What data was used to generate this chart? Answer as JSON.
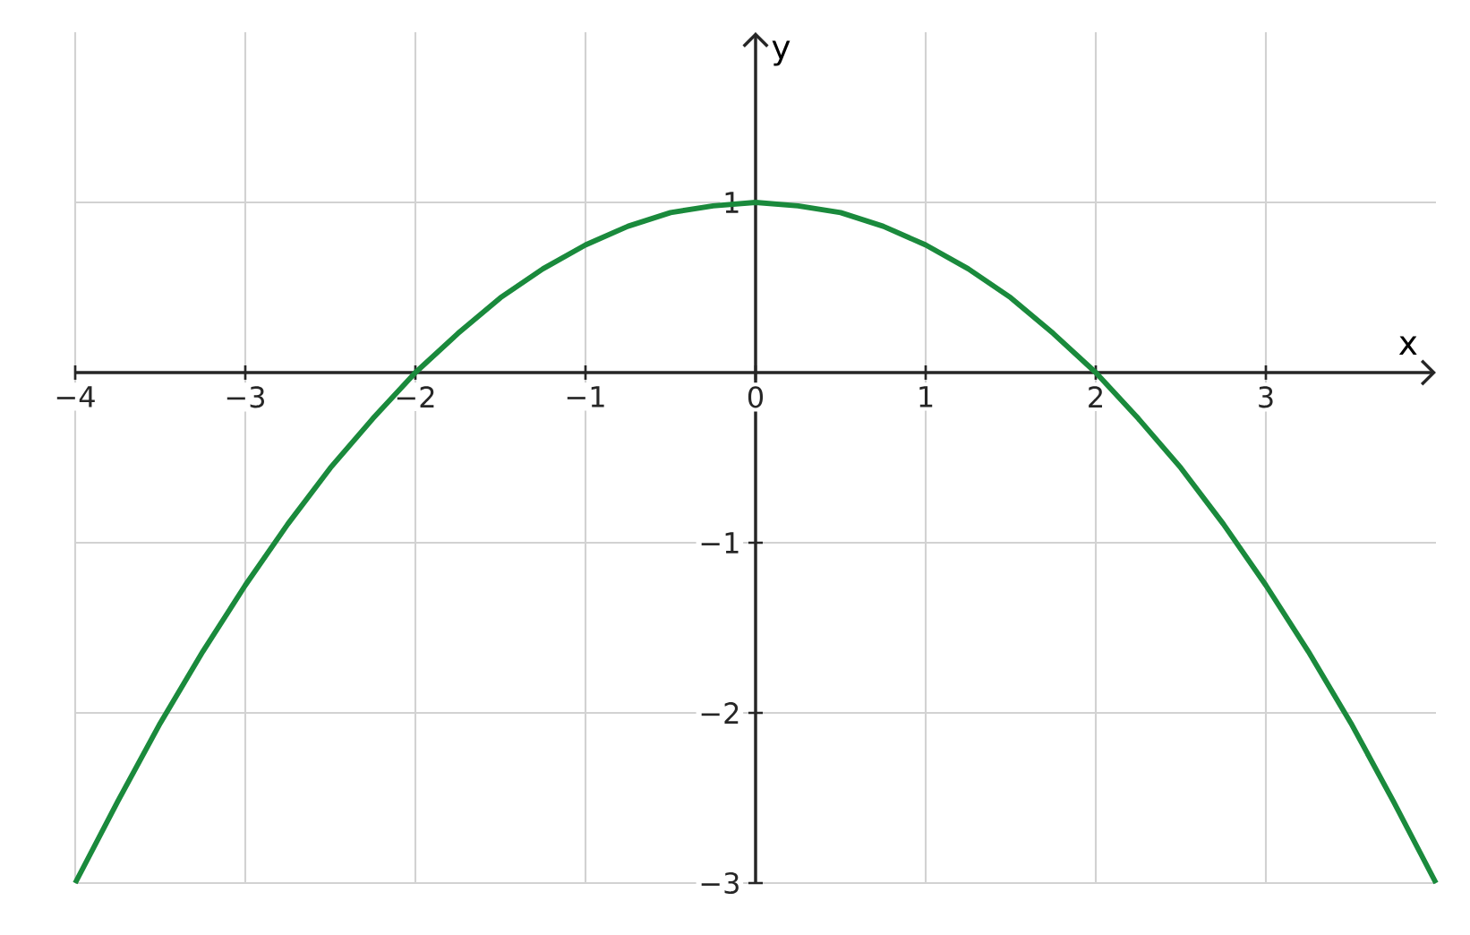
{
  "chart_data": {
    "type": "line",
    "xlabel": "x",
    "ylabel": "y",
    "x": [
      -4,
      -3.75,
      -3.5,
      -3.25,
      -3,
      -2.75,
      -2.5,
      -2.25,
      -2,
      -1.75,
      -1.5,
      -1.25,
      -1,
      -0.75,
      -0.5,
      -0.25,
      0,
      0.25,
      0.5,
      0.75,
      1,
      1.25,
      1.5,
      1.75,
      2,
      2.25,
      2.5,
      2.75,
      3,
      3.25,
      3.5,
      3.75,
      4
    ],
    "series": [
      {
        "color": "#1a8a3c",
        "values": [
          -3,
          -2.52,
          -2.06,
          -1.64,
          -1.25,
          -0.89,
          -0.56,
          -0.27,
          0,
          0.23,
          0.44,
          0.61,
          0.75,
          0.86,
          0.94,
          0.98,
          1,
          0.98,
          0.94,
          0.86,
          0.75,
          0.61,
          0.44,
          0.23,
          0,
          -0.27,
          -0.56,
          -0.89,
          -1.25,
          -1.64,
          -2.06,
          -2.52,
          -3
        ]
      }
    ],
    "xlim": [
      -4,
      4
    ],
    "ylim": [
      -3,
      2
    ],
    "xticks": [
      {
        "value": -4,
        "label": "−4"
      },
      {
        "value": -3,
        "label": "−3"
      },
      {
        "value": -2,
        "label": "−2"
      },
      {
        "value": -1,
        "label": "−1"
      },
      0,
      1,
      2,
      3
    ],
    "yticks": [
      {
        "value": -3,
        "label": "−3"
      },
      {
        "value": -2,
        "label": "−2"
      },
      {
        "value": -1,
        "label": "−1"
      },
      1
    ],
    "grid": true,
    "marker": "none",
    "line_style": "solid"
  }
}
